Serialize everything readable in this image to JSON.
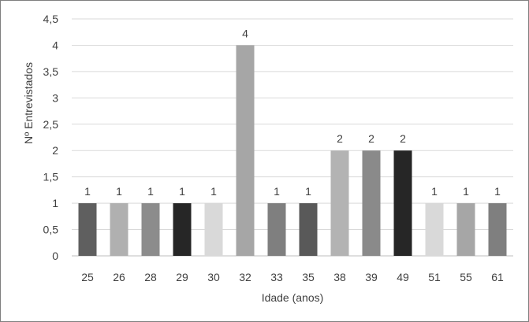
{
  "chart_data": {
    "type": "bar",
    "categories": [
      "25",
      "26",
      "28",
      "29",
      "30",
      "32",
      "33",
      "35",
      "38",
      "39",
      "49",
      "51",
      "55",
      "61"
    ],
    "values": [
      1,
      1,
      1,
      1,
      1,
      4,
      1,
      1,
      2,
      2,
      2,
      1,
      1,
      1
    ],
    "data_labels": [
      "1",
      "1",
      "1",
      "1",
      "1",
      "4",
      "1",
      "1",
      "2",
      "2",
      "2",
      "1",
      "1",
      "1"
    ],
    "bar_colors": [
      "#5f5f5f",
      "#b0b0b0",
      "#8c8c8c",
      "#262626",
      "#d9d9d9",
      "#a6a6a6",
      "#7f7f7f",
      "#595959",
      "#b3b3b3",
      "#8a8a8a",
      "#262626",
      "#d9d9d9",
      "#a6a6a6",
      "#7f7f7f"
    ],
    "title": "",
    "xlabel": "Idade (anos)",
    "ylabel": "Nº Entrevistados",
    "ylim": [
      0,
      4.5
    ],
    "yticks": [
      0,
      0.5,
      1,
      1.5,
      2,
      2.5,
      3,
      3.5,
      4,
      4.5
    ],
    "ytick_labels": [
      "0",
      "0,5",
      "1",
      "1,5",
      "2",
      "2,5",
      "3",
      "3,5",
      "4",
      "4,5"
    ],
    "grid": true,
    "legend": "none",
    "colors": {
      "gridline": "#d9d9d9",
      "text": "#404040",
      "border": "#7f7f7f"
    }
  }
}
